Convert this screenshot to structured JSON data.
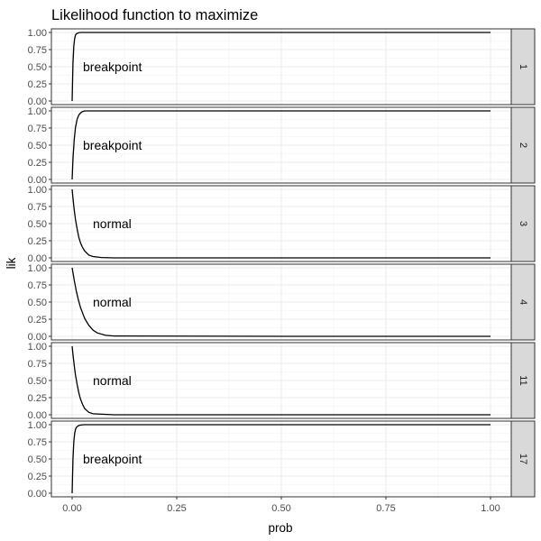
{
  "chart_data": {
    "type": "line",
    "title": "Likelihood function to maximize",
    "xlabel": "prob",
    "ylabel": "lik",
    "xlim": [
      0,
      1
    ],
    "ylim": [
      0,
      1
    ],
    "x_ticks": [
      "0.00",
      "0.25",
      "0.50",
      "0.75",
      "1.00"
    ],
    "y_ticks": [
      "0.00",
      "0.25",
      "0.50",
      "0.75",
      "1.00"
    ],
    "grid": true,
    "facets": [
      {
        "strip": "1",
        "annotation": "breakpoint",
        "series": {
          "x": [
            0,
            0.002,
            0.004,
            0.006,
            0.008,
            0.01,
            0.015,
            0.02,
            0.05,
            0.1,
            0.5,
            1.0
          ],
          "y": [
            0,
            0.55,
            0.8,
            0.91,
            0.96,
            0.98,
            0.995,
            1.0,
            1.0,
            1.0,
            1.0,
            1.0
          ]
        }
      },
      {
        "strip": "2",
        "annotation": "breakpoint",
        "series": {
          "x": [
            0,
            0.002,
            0.005,
            0.008,
            0.012,
            0.016,
            0.02,
            0.025,
            0.03,
            0.04,
            0.1,
            0.5,
            1.0
          ],
          "y": [
            0,
            0.3,
            0.58,
            0.76,
            0.88,
            0.94,
            0.97,
            0.99,
            1.0,
            1.0,
            1.0,
            1.0,
            1.0
          ]
        }
      },
      {
        "strip": "3",
        "annotation": "normal",
        "series": {
          "x": [
            0,
            0.002,
            0.005,
            0.008,
            0.012,
            0.016,
            0.02,
            0.025,
            0.03,
            0.04,
            0.05,
            0.07,
            0.1,
            0.5,
            1.0
          ],
          "y": [
            1.0,
            0.87,
            0.7,
            0.56,
            0.42,
            0.3,
            0.22,
            0.15,
            0.1,
            0.04,
            0.02,
            0.005,
            0,
            0,
            0
          ]
        }
      },
      {
        "strip": "4",
        "annotation": "normal",
        "series": {
          "x": [
            0,
            0.005,
            0.01,
            0.015,
            0.02,
            0.03,
            0.04,
            0.05,
            0.06,
            0.08,
            0.1,
            0.5,
            1.0
          ],
          "y": [
            1.0,
            0.82,
            0.66,
            0.53,
            0.42,
            0.26,
            0.16,
            0.09,
            0.05,
            0.015,
            0.005,
            0,
            0
          ]
        }
      },
      {
        "strip": "11",
        "annotation": "normal",
        "series": {
          "x": [
            0,
            0.002,
            0.005,
            0.008,
            0.012,
            0.016,
            0.02,
            0.025,
            0.03,
            0.04,
            0.05,
            0.1,
            0.5,
            1.0
          ],
          "y": [
            1.0,
            0.88,
            0.72,
            0.58,
            0.44,
            0.32,
            0.23,
            0.15,
            0.09,
            0.035,
            0.015,
            0,
            0,
            0
          ]
        }
      },
      {
        "strip": "17",
        "annotation": "breakpoint",
        "series": {
          "x": [
            0,
            0.002,
            0.004,
            0.006,
            0.008,
            0.01,
            0.015,
            0.02,
            0.03,
            0.1,
            0.5,
            1.0
          ],
          "y": [
            0,
            0.5,
            0.75,
            0.87,
            0.93,
            0.96,
            0.985,
            0.995,
            1.0,
            1.0,
            1.0,
            1.0
          ]
        }
      }
    ]
  }
}
